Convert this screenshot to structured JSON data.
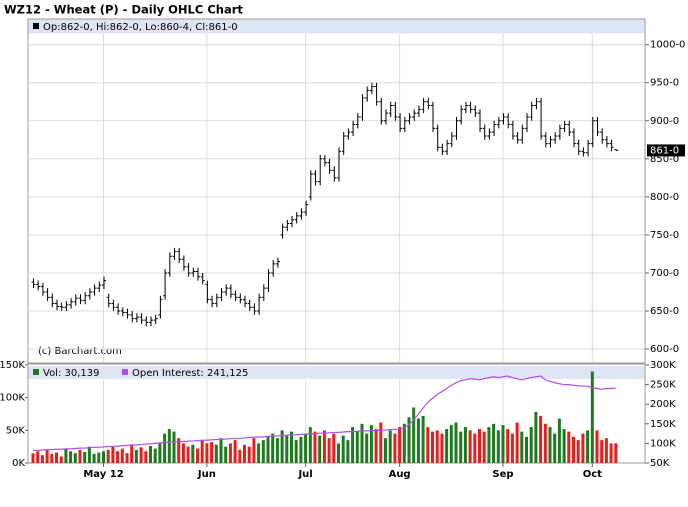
{
  "chart_data": {
    "type": "ohlc",
    "title": "WZ12 - Wheat (P) - Daily OHLC Chart",
    "legend": "Op:862-0, Hi:862-0, Lo:860-4, Cl:861-0",
    "last_label": "861-0",
    "credit": "(c) Barchart.com",
    "color": "#000000",
    "grid": true,
    "categories": [
      null,
      null,
      null,
      null,
      null,
      null,
      null,
      null,
      null,
      null,
      null,
      null,
      null,
      null,
      null,
      "May 12",
      null,
      null,
      null,
      null,
      null,
      null,
      null,
      null,
      null,
      null,
      null,
      null,
      null,
      null,
      null,
      null,
      null,
      null,
      null,
      null,
      null,
      "Jun",
      null,
      null,
      null,
      null,
      null,
      null,
      null,
      null,
      null,
      null,
      null,
      null,
      null,
      null,
      null,
      null,
      null,
      null,
      null,
      null,
      "Jul",
      null,
      null,
      null,
      null,
      null,
      null,
      null,
      null,
      null,
      null,
      null,
      null,
      null,
      null,
      null,
      null,
      null,
      null,
      null,
      "Aug",
      null,
      null,
      null,
      null,
      null,
      null,
      null,
      null,
      null,
      null,
      null,
      null,
      null,
      null,
      null,
      null,
      null,
      null,
      null,
      null,
      null,
      "Sep",
      null,
      null,
      null,
      null,
      null,
      null,
      null,
      null,
      null,
      null,
      null,
      null,
      null,
      null,
      null,
      null,
      null,
      null,
      "Oct",
      null,
      null,
      null,
      null,
      null
    ],
    "ohlc": [
      [
        688,
        693,
        680,
        685
      ],
      [
        685,
        690,
        677,
        682
      ],
      [
        682,
        687,
        670,
        675
      ],
      [
        675,
        680,
        663,
        668
      ],
      [
        668,
        673,
        655,
        660
      ],
      [
        660,
        665,
        651,
        656
      ],
      [
        656,
        661,
        650,
        655
      ],
      [
        655,
        663,
        650,
        658
      ],
      [
        658,
        667,
        653,
        662
      ],
      [
        662,
        672,
        657,
        667
      ],
      [
        667,
        672,
        659,
        664
      ],
      [
        664,
        675,
        659,
        670
      ],
      [
        670,
        680,
        665,
        675
      ],
      [
        675,
        685,
        670,
        680
      ],
      [
        680,
        689,
        675,
        684
      ],
      [
        684,
        695,
        679,
        690
      ],
      [
        668,
        673,
        655,
        660
      ],
      [
        660,
        665,
        650,
        655
      ],
      [
        655,
        660,
        645,
        650
      ],
      [
        650,
        655,
        643,
        648
      ],
      [
        648,
        653,
        640,
        645
      ],
      [
        645,
        650,
        635,
        640
      ],
      [
        640,
        647,
        635,
        642
      ],
      [
        642,
        647,
        633,
        638
      ],
      [
        638,
        643,
        630,
        635
      ],
      [
        635,
        643,
        630,
        638
      ],
      [
        638,
        645,
        633,
        640
      ],
      [
        645,
        670,
        640,
        665
      ],
      [
        670,
        705,
        665,
        700
      ],
      [
        700,
        727,
        695,
        722
      ],
      [
        722,
        733,
        717,
        728
      ],
      [
        728,
        733,
        713,
        718
      ],
      [
        718,
        723,
        703,
        708
      ],
      [
        708,
        713,
        695,
        700
      ],
      [
        700,
        707,
        695,
        702
      ],
      [
        702,
        707,
        690,
        695
      ],
      [
        695,
        700,
        685,
        690
      ],
      [
        685,
        690,
        660,
        665
      ],
      [
        665,
        670,
        655,
        660
      ],
      [
        660,
        673,
        655,
        668
      ],
      [
        668,
        680,
        663,
        675
      ],
      [
        675,
        685,
        670,
        680
      ],
      [
        680,
        685,
        667,
        672
      ],
      [
        672,
        677,
        663,
        668
      ],
      [
        668,
        673,
        660,
        665
      ],
      [
        665,
        670,
        655,
        660
      ],
      [
        660,
        665,
        650,
        655
      ],
      [
        655,
        660,
        645,
        650
      ],
      [
        650,
        673,
        645,
        668
      ],
      [
        668,
        685,
        663,
        680
      ],
      [
        680,
        705,
        675,
        700
      ],
      [
        700,
        717,
        695,
        712
      ],
      [
        712,
        720,
        707,
        715
      ],
      [
        750,
        765,
        745,
        760
      ],
      [
        760,
        770,
        755,
        765
      ],
      [
        765,
        775,
        760,
        770
      ],
      [
        770,
        780,
        765,
        775
      ],
      [
        775,
        785,
        770,
        780
      ],
      [
        780,
        795,
        775,
        790
      ],
      [
        800,
        835,
        795,
        830
      ],
      [
        830,
        835,
        815,
        820
      ],
      [
        820,
        855,
        815,
        850
      ],
      [
        850,
        855,
        840,
        845
      ],
      [
        845,
        850,
        830,
        835
      ],
      [
        835,
        840,
        820,
        825
      ],
      [
        825,
        865,
        820,
        860
      ],
      [
        860,
        885,
        855,
        880
      ],
      [
        880,
        890,
        875,
        885
      ],
      [
        885,
        900,
        880,
        895
      ],
      [
        895,
        910,
        890,
        905
      ],
      [
        905,
        935,
        900,
        930
      ],
      [
        930,
        945,
        925,
        940
      ],
      [
        940,
        950,
        935,
        945
      ],
      [
        945,
        950,
        920,
        925
      ],
      [
        925,
        930,
        895,
        900
      ],
      [
        900,
        915,
        895,
        910
      ],
      [
        910,
        925,
        905,
        920
      ],
      [
        920,
        925,
        900,
        905
      ],
      [
        905,
        910,
        885,
        890
      ],
      [
        890,
        905,
        885,
        900
      ],
      [
        900,
        910,
        895,
        905
      ],
      [
        905,
        915,
        900,
        910
      ],
      [
        910,
        920,
        905,
        915
      ],
      [
        915,
        930,
        910,
        925
      ],
      [
        925,
        930,
        915,
        920
      ],
      [
        920,
        925,
        885,
        890
      ],
      [
        890,
        895,
        860,
        865
      ],
      [
        865,
        870,
        855,
        860
      ],
      [
        860,
        875,
        855,
        870
      ],
      [
        870,
        885,
        865,
        880
      ],
      [
        880,
        905,
        875,
        900
      ],
      [
        900,
        920,
        895,
        915
      ],
      [
        915,
        925,
        910,
        920
      ],
      [
        920,
        925,
        910,
        915
      ],
      [
        915,
        920,
        905,
        910
      ],
      [
        910,
        915,
        885,
        890
      ],
      [
        890,
        895,
        875,
        880
      ],
      [
        880,
        890,
        875,
        885
      ],
      [
        885,
        900,
        880,
        895
      ],
      [
        895,
        905,
        890,
        900
      ],
      [
        900,
        910,
        895,
        905
      ],
      [
        905,
        910,
        890,
        895
      ],
      [
        895,
        900,
        875,
        880
      ],
      [
        880,
        885,
        870,
        875
      ],
      [
        875,
        895,
        870,
        890
      ],
      [
        890,
        910,
        885,
        905
      ],
      [
        905,
        925,
        900,
        920
      ],
      [
        920,
        930,
        915,
        925
      ],
      [
        925,
        930,
        875,
        880
      ],
      [
        880,
        885,
        865,
        870
      ],
      [
        870,
        880,
        865,
        875
      ],
      [
        875,
        885,
        870,
        880
      ],
      [
        880,
        895,
        875,
        890
      ],
      [
        890,
        900,
        885,
        895
      ],
      [
        895,
        900,
        880,
        885
      ],
      [
        885,
        890,
        865,
        870
      ],
      [
        870,
        875,
        855,
        860
      ],
      [
        860,
        865,
        853,
        858
      ],
      [
        858,
        875,
        853,
        870
      ],
      [
        870,
        905,
        865,
        900
      ],
      [
        900,
        905,
        880,
        885
      ],
      [
        885,
        890,
        870,
        875
      ],
      [
        875,
        880,
        865,
        870
      ],
      [
        870,
        875,
        860,
        865
      ],
      [
        862,
        862,
        860.5,
        861
      ]
    ],
    "ylim": [
      583,
      1014
    ],
    "yticks": [
      {
        "value": 600,
        "label": "600-0"
      },
      {
        "value": 650,
        "label": "650-0"
      },
      {
        "value": 700,
        "label": "700-0"
      },
      {
        "value": 750,
        "label": "750-0"
      },
      {
        "value": 800,
        "label": "800-0"
      },
      {
        "value": 850,
        "label": "850-0"
      },
      {
        "value": 900,
        "label": "900-0"
      },
      {
        "value": 950,
        "label": "950-0"
      },
      {
        "value": 1000,
        "label": "1000-0"
      }
    ],
    "volume": {
      "type": "bar",
      "name": "Vol: 30,139",
      "up_color": "#1f7a1f",
      "down_color": "#e3201c",
      "values": [
        15000,
        18000,
        12000,
        20000,
        14000,
        16000,
        10000,
        22000,
        18000,
        15000,
        20000,
        17000,
        25000,
        14000,
        16000,
        18000,
        20000,
        25000,
        18000,
        22000,
        15000,
        28000,
        20000,
        24000,
        18000,
        26000,
        22000,
        30000,
        45000,
        52000,
        48000,
        38000,
        30000,
        25000,
        28000,
        22000,
        35000,
        30000,
        32000,
        28000,
        38000,
        25000,
        30000,
        35000,
        20000,
        28000,
        25000,
        38000,
        30000,
        35000,
        40000,
        45000,
        38000,
        50000,
        42000,
        48000,
        35000,
        40000,
        45000,
        55000,
        48000,
        42000,
        50000,
        38000,
        45000,
        30000,
        42000,
        35000,
        55000,
        48000,
        60000,
        45000,
        58000,
        52000,
        62000,
        38000,
        50000,
        45000,
        55000,
        60000,
        70000,
        85000,
        68000,
        72000,
        55000,
        48000,
        50000,
        45000,
        52000,
        58000,
        62000,
        48000,
        55000,
        50000,
        45000,
        52000,
        48000,
        55000,
        60000,
        50000,
        58000,
        52000,
        45000,
        62000,
        48000,
        40000,
        55000,
        78000,
        72000,
        60000,
        55000,
        45000,
        68000,
        52000,
        48000,
        40000,
        35000,
        45000,
        50000,
        140000,
        50000,
        35000,
        38000,
        30000,
        30139
      ],
      "ylim": [
        0,
        150000
      ],
      "yticks": [
        {
          "value": 0,
          "label": "0K"
        },
        {
          "value": 50000,
          "label": "50K"
        },
        {
          "value": 100000,
          "label": "100K"
        },
        {
          "value": 150000,
          "label": "150K"
        }
      ]
    },
    "open_interest": {
      "type": "line",
      "name": "Open Interest: 241,125",
      "color": "#b04ee6",
      "values": [
        82000,
        82000,
        83000,
        84000,
        84000,
        85000,
        85000,
        86000,
        86000,
        87000,
        88000,
        88000,
        89000,
        90000,
        90000,
        91000,
        92000,
        92000,
        93000,
        94000,
        95000,
        96000,
        96000,
        97000,
        98000,
        99000,
        100000,
        101000,
        102000,
        103000,
        104000,
        104000,
        105000,
        106000,
        106000,
        107000,
        108000,
        108000,
        109000,
        110000,
        110000,
        111000,
        112000,
        112000,
        113000,
        114000,
        115000,
        116000,
        116000,
        117000,
        118000,
        118000,
        119000,
        120000,
        121000,
        122000,
        122000,
        123000,
        124000,
        124000,
        125000,
        126000,
        126000,
        127000,
        128000,
        128000,
        129000,
        130000,
        130000,
        131000,
        132000,
        132000,
        133000,
        133000,
        134000,
        134000,
        135000,
        136000,
        136000,
        140000,
        148000,
        160000,
        175000,
        190000,
        205000,
        215000,
        225000,
        232000,
        240000,
        248000,
        255000,
        260000,
        262000,
        265000,
        264000,
        262000,
        265000,
        268000,
        270000,
        268000,
        270000,
        272000,
        268000,
        265000,
        262000,
        265000,
        268000,
        270000,
        272000,
        262000,
        258000,
        255000,
        252000,
        250000,
        250000,
        248000,
        247000,
        246000,
        246000,
        242000,
        240000,
        238000,
        240000,
        240000,
        241125
      ],
      "ylim": [
        50000,
        300000
      ],
      "yticks": [
        {
          "value": 50000,
          "label": "50K"
        },
        {
          "value": 100000,
          "label": "100K"
        },
        {
          "value": 150000,
          "label": "150K"
        },
        {
          "value": 200000,
          "label": "200K"
        },
        {
          "value": 250000,
          "label": "250K"
        },
        {
          "value": 300000,
          "label": "300K"
        }
      ]
    }
  }
}
